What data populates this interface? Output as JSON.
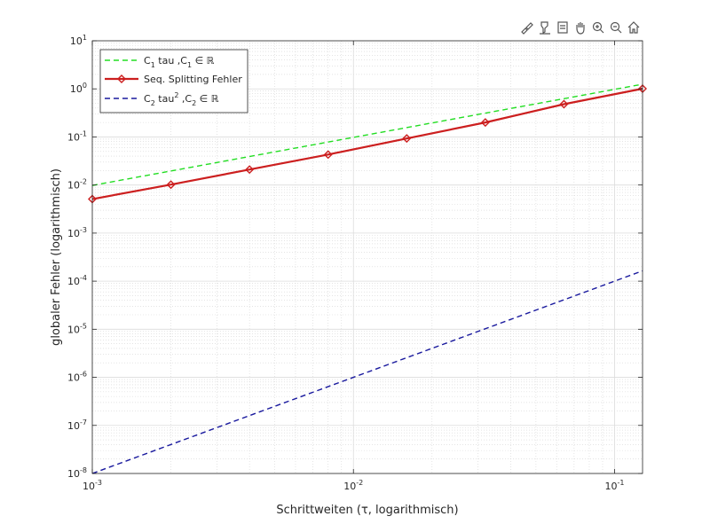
{
  "toolbar": {
    "buttons": [
      {
        "icon": "brush-icon",
        "name": "brush-button"
      },
      {
        "icon": "datatip-icon",
        "name": "datatip-button"
      },
      {
        "icon": "restore-view-icon",
        "name": "restore-view-button"
      },
      {
        "icon": "pan-hand-icon",
        "name": "pan-button"
      },
      {
        "icon": "zoom-in-icon",
        "name": "zoom-in-button"
      },
      {
        "icon": "zoom-out-icon",
        "name": "zoom-out-button"
      },
      {
        "icon": "home-icon",
        "name": "home-button"
      }
    ]
  },
  "chart_data": {
    "type": "line",
    "xscale": "log",
    "yscale": "log",
    "xlabel": "Schrittweiten (τ, logarithmisch)",
    "ylabel": "globaler Fehler (logarithmisch)",
    "xlim": [
      0.001,
      0.128
    ],
    "ylim": [
      1e-08,
      10
    ],
    "grid": true,
    "minor_grid": true,
    "legend_position": "top-left",
    "xticks": [
      {
        "value": 0.001,
        "base": "10",
        "exp": "-3"
      },
      {
        "value": 0.01,
        "base": "10",
        "exp": "-2"
      },
      {
        "value": 0.1,
        "base": "10",
        "exp": "-1"
      }
    ],
    "yticks": [
      {
        "value": 1e-08,
        "base": "10",
        "exp": "-8"
      },
      {
        "value": 1e-07,
        "base": "10",
        "exp": "-7"
      },
      {
        "value": 1e-06,
        "base": "10",
        "exp": "-6"
      },
      {
        "value": 1e-05,
        "base": "10",
        "exp": "-5"
      },
      {
        "value": 0.0001,
        "base": "10",
        "exp": "-4"
      },
      {
        "value": 0.001,
        "base": "10",
        "exp": "-3"
      },
      {
        "value": 0.01,
        "base": "10",
        "exp": "-2"
      },
      {
        "value": 0.1,
        "base": "10",
        "exp": "-1"
      },
      {
        "value": 1,
        "base": "10",
        "exp": "0"
      },
      {
        "value": 10,
        "base": "10",
        "exp": "1"
      }
    ],
    "series": [
      {
        "legend": {
          "c": "C",
          "csub": "1",
          "mid": " tau  ,C",
          "sub": "1",
          "tail": " ∈ ℝ"
        },
        "color": "#22dd22",
        "style": "dashed",
        "x": [
          0.001,
          0.128
        ],
        "y": [
          0.0098,
          1.25
        ]
      },
      {
        "legend": {
          "c": "Seq. Splitting Fehler"
        },
        "color": "#cc1f1f",
        "style": "solid",
        "marker": "diamond",
        "x": [
          0.001,
          0.002,
          0.004,
          0.008,
          0.016,
          0.032,
          0.064,
          0.128
        ],
        "y": [
          0.0051,
          0.0102,
          0.021,
          0.043,
          0.093,
          0.2,
          0.48,
          1.01
        ]
      },
      {
        "legend": {
          "c": "C",
          "csub": "2",
          "mid": " tau",
          "sup": "2",
          "mid2": " ,C",
          "sub": "2",
          "tail": " ∈ ℝ"
        },
        "color": "#1a1a9e",
        "style": "dashed",
        "x": [
          0.001,
          0.128
        ],
        "y": [
          1e-08,
          0.000164
        ]
      }
    ]
  }
}
